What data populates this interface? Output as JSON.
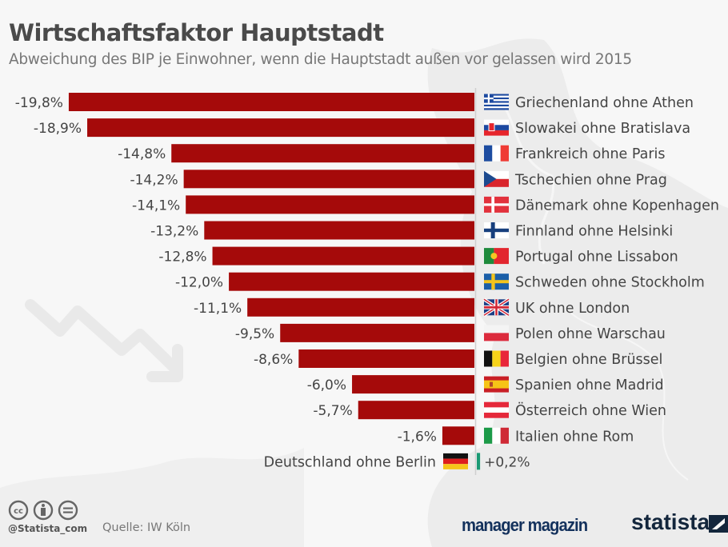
{
  "header": {
    "title": "Wirtschaftsfaktor Hauptstadt",
    "subtitle": "Abweichung des BIP je Einwohner, wenn die Hauptstadt außen vor gelassen wird 2015"
  },
  "colors": {
    "negative_bar": "#a50a0a",
    "positive_bar": "#1a9a74",
    "label_text": "#444444",
    "background": "#f7f7f7"
  },
  "chart_data": {
    "type": "bar",
    "orientation": "horizontal",
    "title": "Wirtschaftsfaktor Hauptstadt",
    "subtitle": "Abweichung des BIP je Einwohner, wenn die Hauptstadt außen vor gelassen wird 2015",
    "xlabel": "",
    "ylabel": "",
    "unit": "%",
    "xlim": [
      -19.8,
      0.2
    ],
    "grid": false,
    "categories": [
      "Griechenland ohne Athen",
      "Slowakei ohne Bratislava",
      "Frankreich ohne Paris",
      "Tschechien ohne Prag",
      "Dänemark ohne Kopenhagen",
      "Finnland ohne Helsinki",
      "Portugal ohne Lissabon",
      "Schweden ohne Stockholm",
      "UK ohne London",
      "Polen ohne Warschau",
      "Belgien ohne Brüssel",
      "Spanien ohne Madrid",
      "Österreich ohne Wien",
      "Italien ohne Rom",
      "Deutschland ohne Berlin"
    ],
    "values": [
      -19.8,
      -18.9,
      -14.8,
      -14.2,
      -14.1,
      -13.2,
      -12.8,
      -12.0,
      -11.1,
      -9.5,
      -8.6,
      -6.0,
      -5.7,
      -1.6,
      0.2
    ],
    "value_labels": [
      "-19,8%",
      "-18,9%",
      "-14,8%",
      "-14,2%",
      "-14,1%",
      "-13,2%",
      "-12,8%",
      "-12,0%",
      "-11,1%",
      "-9,5%",
      "-8,6%",
      "-6,0%",
      "-5,7%",
      "-1,6%",
      "+0,2%"
    ],
    "flags": [
      "greece-flag",
      "slovakia-flag",
      "france-flag",
      "czech-flag",
      "denmark-flag",
      "finland-flag",
      "portugal-flag",
      "sweden-flag",
      "uk-flag",
      "poland-flag",
      "belgium-flag",
      "spain-flag",
      "austria-flag",
      "italy-flag",
      "germany-flag"
    ]
  },
  "footer": {
    "license_icons": [
      "cc-icon",
      "by-icon",
      "nd-icon"
    ],
    "handle": "@Statista_com",
    "source": "Quelle: IW Köln",
    "partner_logo": "manager magazin",
    "brand_logo": "statista"
  }
}
